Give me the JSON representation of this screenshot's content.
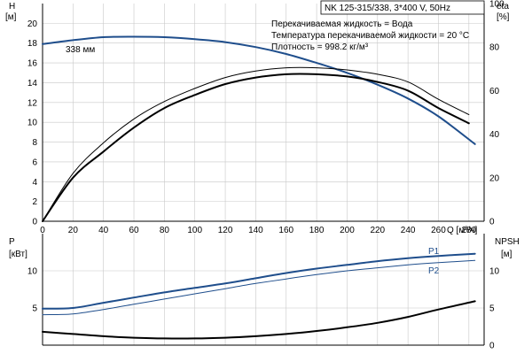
{
  "header": {
    "title": "NK 125-315/338, 3*400 V, 50Hz"
  },
  "info": {
    "lines": [
      "Перекачиваемая жидкость = Вода",
      "Температура перекачиваемой жидкости = 20 °C",
      "Плотность = 998.2 кг/м³"
    ]
  },
  "colors": {
    "blue": "#1f4e8c",
    "black": "#000000",
    "grid": "#c8c8c8"
  },
  "chart_data": [
    {
      "type": "line",
      "name": "head-efficiency",
      "x_unit_label": "Q [м³/ч]",
      "xlim": [
        0,
        290
      ],
      "x_ticks": [
        0,
        20,
        40,
        60,
        80,
        100,
        120,
        140,
        160,
        180,
        200,
        220,
        240,
        260,
        280
      ],
      "left_axis": {
        "label_top": "H",
        "label_unit": "[м]",
        "ylim": [
          0,
          22
        ],
        "ticks": [
          0,
          2,
          4,
          6,
          8,
          10,
          12,
          14,
          16,
          18,
          20
        ]
      },
      "right_axis": {
        "label_top": "eta",
        "label_unit": "[%]",
        "ylim": [
          0,
          100
        ],
        "ticks": [
          0,
          20,
          40,
          60,
          80,
          100
        ]
      },
      "annotation": "338 мм",
      "series": [
        {
          "key": "H",
          "axis": "left",
          "color": "#1f4e8c",
          "width": 2,
          "points": [
            [
              0,
              17.9
            ],
            [
              20,
              18.3
            ],
            [
              40,
              18.6
            ],
            [
              60,
              18.65
            ],
            [
              80,
              18.6
            ],
            [
              100,
              18.4
            ],
            [
              120,
              18.1
            ],
            [
              140,
              17.6
            ],
            [
              160,
              16.9
            ],
            [
              180,
              16.0
            ],
            [
              200,
              15.0
            ],
            [
              220,
              13.8
            ],
            [
              240,
              12.4
            ],
            [
              260,
              10.6
            ],
            [
              284,
              7.8
            ]
          ]
        },
        {
          "key": "eta-upper",
          "axis": "right",
          "color": "#000000",
          "width": 1,
          "points": [
            [
              0,
              0
            ],
            [
              20,
              22
            ],
            [
              40,
              36
            ],
            [
              60,
              47
            ],
            [
              80,
              55
            ],
            [
              100,
              61
            ],
            [
              120,
              66
            ],
            [
              140,
              69
            ],
            [
              160,
              70.5
            ],
            [
              180,
              70.5
            ],
            [
              200,
              69.5
            ],
            [
              220,
              67.5
            ],
            [
              240,
              64
            ],
            [
              260,
              56
            ],
            [
              280,
              49
            ]
          ]
        },
        {
          "key": "eta",
          "axis": "right",
          "color": "#000000",
          "width": 2,
          "points": [
            [
              0,
              0
            ],
            [
              20,
              20
            ],
            [
              40,
              32
            ],
            [
              60,
              43
            ],
            [
              80,
              52
            ],
            [
              100,
              58
            ],
            [
              120,
              63
            ],
            [
              140,
              66
            ],
            [
              160,
              67.5
            ],
            [
              180,
              67.5
            ],
            [
              200,
              66.5
            ],
            [
              220,
              64
            ],
            [
              240,
              60
            ],
            [
              260,
              52
            ],
            [
              280,
              45
            ]
          ]
        }
      ]
    },
    {
      "type": "line",
      "name": "power-npsh",
      "xlim": [
        0,
        290
      ],
      "left_axis": {
        "label_top": "P",
        "label_unit": "[кВт]",
        "ylim": [
          0,
          15
        ],
        "ticks": [
          5,
          10
        ]
      },
      "right_axis": {
        "label_top": "NPSH",
        "label_unit": "[м]",
        "ylim": [
          0,
          15
        ],
        "ticks": [
          0,
          5,
          10
        ]
      },
      "series": [
        {
          "key": "P1",
          "name": "P1",
          "axis": "left",
          "color": "#1f4e8c",
          "width": 2,
          "points": [
            [
              0,
              4.9
            ],
            [
              20,
              5.0
            ],
            [
              40,
              5.7
            ],
            [
              60,
              6.4
            ],
            [
              80,
              7.1
            ],
            [
              100,
              7.7
            ],
            [
              120,
              8.3
            ],
            [
              140,
              9.0
            ],
            [
              160,
              9.7
            ],
            [
              180,
              10.3
            ],
            [
              200,
              10.8
            ],
            [
              220,
              11.3
            ],
            [
              240,
              11.7
            ],
            [
              260,
              12.0
            ],
            [
              284,
              12.3
            ]
          ]
        },
        {
          "key": "P2",
          "name": "P2",
          "axis": "left",
          "color": "#1f4e8c",
          "width": 1,
          "points": [
            [
              0,
              4.1
            ],
            [
              20,
              4.2
            ],
            [
              40,
              4.8
            ],
            [
              60,
              5.5
            ],
            [
              80,
              6.2
            ],
            [
              100,
              6.9
            ],
            [
              120,
              7.6
            ],
            [
              140,
              8.3
            ],
            [
              160,
              8.9
            ],
            [
              180,
              9.5
            ],
            [
              200,
              10.0
            ],
            [
              220,
              10.4
            ],
            [
              240,
              10.8
            ],
            [
              260,
              11.1
            ],
            [
              284,
              11.4
            ]
          ]
        },
        {
          "key": "NPSH",
          "axis": "right",
          "color": "#000000",
          "width": 2,
          "points": [
            [
              0,
              1.8
            ],
            [
              20,
              1.5
            ],
            [
              40,
              1.2
            ],
            [
              60,
              1.0
            ],
            [
              80,
              0.9
            ],
            [
              100,
              0.9
            ],
            [
              120,
              1.0
            ],
            [
              140,
              1.2
            ],
            [
              160,
              1.5
            ],
            [
              180,
              1.9
            ],
            [
              200,
              2.4
            ],
            [
              220,
              3.0
            ],
            [
              240,
              3.8
            ],
            [
              260,
              4.8
            ],
            [
              284,
              5.9
            ]
          ]
        }
      ]
    }
  ]
}
